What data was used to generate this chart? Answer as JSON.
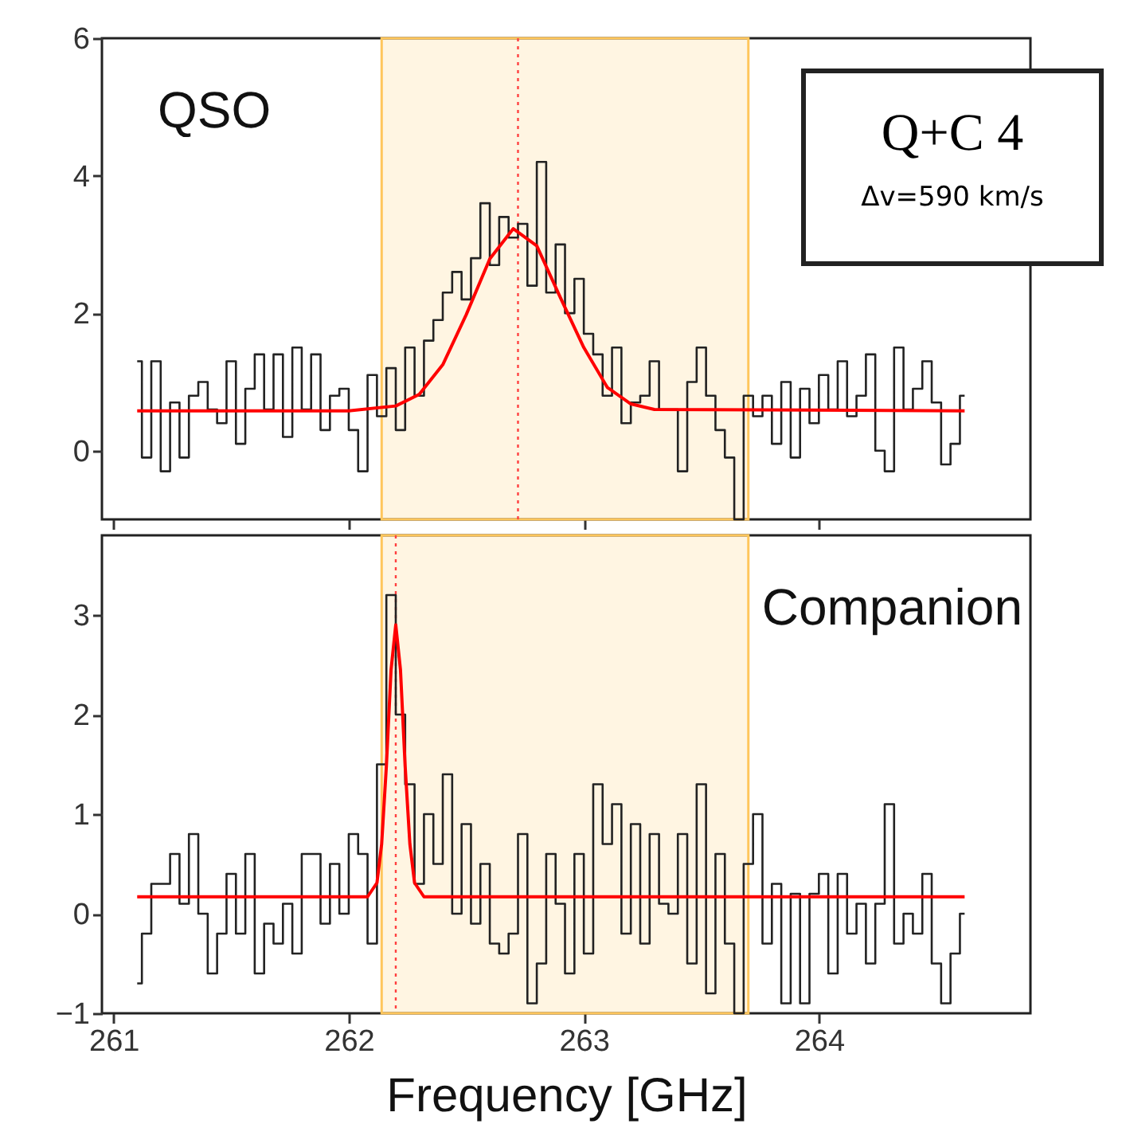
{
  "chart_data": [
    {
      "type": "step",
      "annotations": [
        "QSO",
        "Q+C 4",
        "Δv=590 km/s"
      ],
      "x": [
        261.1,
        261.14,
        261.18,
        261.22,
        261.26,
        261.3,
        261.34,
        261.38,
        261.42,
        261.46,
        261.5,
        261.54,
        261.58,
        261.62,
        261.66,
        261.7,
        261.74,
        261.78,
        261.82,
        261.86,
        261.9,
        261.94,
        261.98,
        262.02,
        262.06,
        262.1,
        262.14,
        262.18,
        262.22,
        262.26,
        262.3,
        262.34,
        262.38,
        262.42,
        262.46,
        262.5,
        262.54,
        262.58,
        262.62,
        262.66,
        262.7,
        262.74,
        262.78,
        262.82,
        262.86,
        262.9,
        262.94,
        262.98,
        263.02,
        263.06,
        263.1,
        263.14,
        263.18,
        263.22,
        263.26,
        263.3,
        263.34,
        263.38,
        263.42,
        263.46,
        263.5,
        263.54,
        263.58,
        263.62,
        263.66,
        263.7,
        263.74,
        263.78,
        263.82,
        263.86,
        263.9,
        263.94,
        263.98,
        264.02,
        264.06,
        264.1,
        264.14,
        264.18,
        264.22,
        264.26,
        264.3,
        264.34,
        264.38,
        264.42,
        264.46,
        264.5,
        264.54,
        264.58,
        264.62
      ],
      "series": [
        {
          "color": "#222222",
          "values": [
            1.3,
            -0.1,
            1.3,
            -0.3,
            0.7,
            -0.1,
            0.8,
            1.0,
            0.6,
            0.4,
            1.3,
            0.1,
            0.9,
            1.4,
            0.6,
            1.4,
            0.2,
            1.5,
            0.6,
            1.4,
            0.3,
            0.8,
            0.9,
            0.3,
            -0.3,
            1.1,
            0.5,
            1.2,
            0.3,
            1.5,
            0.8,
            1.6,
            1.9,
            2.3,
            2.6,
            2.2,
            2.8,
            3.6,
            2.7,
            3.4,
            3.1,
            3.3,
            2.4,
            4.2,
            2.3,
            3.0,
            2.0,
            2.5,
            1.7,
            1.4,
            0.8,
            1.5,
            0.4,
            0.7,
            0.8,
            1.3,
            0.6,
            0.6,
            -0.3,
            1.0,
            1.5,
            0.8,
            0.3,
            -0.1,
            -1.0,
            0.8,
            0.5,
            0.8,
            0.1,
            1.0,
            -0.1,
            0.9,
            0.4,
            1.1,
            0.6,
            1.3,
            0.5,
            0.8,
            1.4,
            0.0,
            -0.3,
            1.5,
            0.6,
            0.9,
            1.3,
            0.7,
            -0.2,
            0.1,
            0.8
          ]
        },
        {
          "type": "line",
          "color": "#ff0000",
          "x": [
            261.1,
            262.0,
            262.2,
            262.3,
            262.4,
            262.5,
            262.6,
            262.7,
            262.8,
            262.9,
            263.0,
            263.1,
            263.2,
            263.3,
            264.62
          ],
          "values": [
            0.58,
            0.58,
            0.65,
            0.82,
            1.25,
            1.98,
            2.79,
            3.23,
            2.98,
            2.23,
            1.5,
            0.92,
            0.68,
            0.6,
            0.58
          ]
        }
      ],
      "bands": [
        {
          "axis": "x",
          "from": 262.14,
          "to": 263.7,
          "color": "#ffc65c"
        }
      ],
      "ref_lines": [
        {
          "axis": "x",
          "value": 262.72,
          "color": "#ff4040",
          "line_style": "dotted"
        }
      ],
      "xlim": [
        260.95,
        264.9
      ],
      "xticks": [
        261,
        262,
        263,
        264
      ],
      "ylim": [
        -1,
        6
      ],
      "yticks": [
        0,
        2,
        4,
        6
      ],
      "tick_labels": "y"
    },
    {
      "type": "step",
      "xlabel": "Frequency [GHz]",
      "annotations": [
        "Companion"
      ],
      "x": [
        261.1,
        261.14,
        261.18,
        261.22,
        261.26,
        261.3,
        261.34,
        261.38,
        261.42,
        261.46,
        261.5,
        261.54,
        261.58,
        261.62,
        261.66,
        261.7,
        261.74,
        261.78,
        261.82,
        261.86,
        261.9,
        261.94,
        261.98,
        262.02,
        262.06,
        262.1,
        262.14,
        262.18,
        262.22,
        262.26,
        262.3,
        262.34,
        262.38,
        262.42,
        262.46,
        262.5,
        262.54,
        262.58,
        262.62,
        262.66,
        262.7,
        262.74,
        262.78,
        262.82,
        262.86,
        262.9,
        262.94,
        262.98,
        263.02,
        263.06,
        263.1,
        263.14,
        263.18,
        263.22,
        263.26,
        263.3,
        263.34,
        263.38,
        263.42,
        263.46,
        263.5,
        263.54,
        263.58,
        263.62,
        263.66,
        263.7,
        263.74,
        263.78,
        263.82,
        263.86,
        263.9,
        263.94,
        263.98,
        264.02,
        264.06,
        264.1,
        264.14,
        264.18,
        264.22,
        264.26,
        264.3,
        264.34,
        264.38,
        264.42,
        264.46,
        264.5,
        264.54,
        264.58,
        264.62
      ],
      "series": [
        {
          "color": "#222222",
          "values": [
            -0.7,
            -0.2,
            0.3,
            0.3,
            0.6,
            0.1,
            0.8,
            0.0,
            -0.6,
            -0.2,
            0.4,
            -0.2,
            0.6,
            -0.6,
            -0.1,
            -0.3,
            0.1,
            -0.4,
            0.6,
            0.6,
            -0.1,
            0.5,
            0.0,
            0.8,
            0.6,
            -0.3,
            1.5,
            3.2,
            2.0,
            1.3,
            0.3,
            1.0,
            0.5,
            1.4,
            0.0,
            0.9,
            -0.1,
            0.5,
            -0.3,
            -0.4,
            -0.2,
            0.8,
            -0.9,
            -0.5,
            0.6,
            0.1,
            -0.6,
            0.6,
            -0.4,
            1.3,
            0.7,
            1.1,
            -0.2,
            0.9,
            -0.3,
            0.8,
            0.1,
            0.0,
            0.8,
            -0.5,
            1.3,
            -0.8,
            0.6,
            -0.3,
            -1.0,
            0.5,
            1.0,
            -0.3,
            0.3,
            -0.9,
            0.2,
            -0.9,
            0.2,
            0.4,
            -0.6,
            0.4,
            -0.2,
            0.1,
            -0.5,
            0.1,
            1.1,
            -0.3,
            0.0,
            -0.2,
            0.4,
            -0.5,
            -0.9,
            -0.4,
            0.0
          ]
        },
        {
          "type": "line",
          "color": "#ff0000",
          "x": [
            261.1,
            262.08,
            262.12,
            262.14,
            262.16,
            262.18,
            262.2,
            262.22,
            262.24,
            262.26,
            262.28,
            262.32,
            264.62
          ],
          "values": [
            0.17,
            0.17,
            0.31,
            0.7,
            1.48,
            2.45,
            2.9,
            2.45,
            1.48,
            0.7,
            0.31,
            0.17,
            0.17
          ]
        }
      ],
      "bands": [
        {
          "axis": "x",
          "from": 262.14,
          "to": 263.7,
          "color": "#ffc65c"
        }
      ],
      "ref_lines": [
        {
          "axis": "x",
          "value": 262.2,
          "color": "#ff4040",
          "line_style": "dotted"
        }
      ],
      "xlim": [
        260.95,
        264.9
      ],
      "xticks": [
        261,
        262,
        263,
        264
      ],
      "ylim": [
        -1,
        3.8
      ],
      "yticks": [
        -1,
        0,
        1,
        2,
        3
      ]
    }
  ]
}
